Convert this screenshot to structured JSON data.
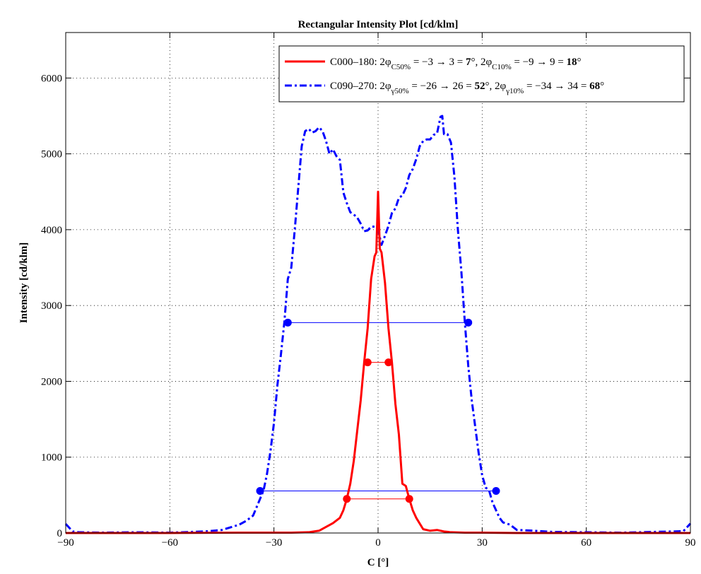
{
  "chart_data": {
    "type": "line",
    "title": "Rectangular Intensity Plot [cd/klm]",
    "xlabel": "C [°]",
    "ylabel": "Intensity [cd/klm]",
    "xlim": [
      -90,
      90
    ],
    "ylim": [
      0,
      6600
    ],
    "xticks": [
      -90,
      -60,
      -30,
      0,
      30,
      60,
      90
    ],
    "yticks": [
      0,
      1000,
      2000,
      3000,
      4000,
      5000,
      6000
    ],
    "xtick_labels": [
      "−90",
      "−60",
      "−30",
      "0",
      "30",
      "60",
      "90"
    ],
    "ytick_labels": [
      "0",
      "1000",
      "2000",
      "3000",
      "4000",
      "5000",
      "6000"
    ],
    "grid": true,
    "legend_position": "top-right",
    "series": [
      {
        "name": "C000–180",
        "color": "#ff0000",
        "style": "solid",
        "x": [
          -90,
          -60,
          -40,
          -30,
          -25,
          -20,
          -17,
          -15,
          -13,
          -11,
          -10,
          -9,
          -8,
          -7,
          -6,
          -5,
          -4,
          -3,
          -2,
          -1,
          -0.5,
          0,
          0.5,
          1,
          2,
          3,
          4,
          5,
          6,
          7,
          8,
          9,
          10,
          11,
          13,
          15,
          17,
          19,
          21,
          25,
          30,
          40,
          60,
          90
        ],
        "y": [
          0,
          0,
          5,
          5,
          5,
          10,
          30,
          80,
          130,
          200,
          300,
          450,
          650,
          950,
          1350,
          1750,
          2250,
          2700,
          3350,
          3650,
          3700,
          4500,
          3750,
          3700,
          3300,
          2700,
          2250,
          1700,
          1300,
          650,
          620,
          450,
          300,
          200,
          50,
          30,
          40,
          20,
          10,
          5,
          5,
          0,
          0,
          0
        ]
      },
      {
        "name": "C090–270",
        "color": "#0000ff",
        "style": "dashdot",
        "x": [
          -90,
          -88,
          -86,
          -80,
          -70,
          -60,
          -50,
          -45,
          -40,
          -38,
          -36,
          -34,
          -33,
          -32,
          -31,
          -30,
          -29,
          -28,
          -27,
          -26,
          -25,
          -24,
          -23,
          -22,
          -21,
          -20,
          -19,
          -18,
          -17,
          -16,
          -15,
          -14,
          -13,
          -12,
          -11,
          -10,
          -9,
          -8,
          -7,
          -6,
          -5,
          -4,
          -3,
          -2,
          -1,
          0,
          1,
          2,
          3,
          4,
          5,
          6,
          7,
          8,
          9,
          10,
          11,
          12,
          13,
          14,
          15,
          16,
          17,
          18,
          18.5,
          19,
          20,
          21,
          22,
          23,
          24,
          25,
          26,
          27,
          28,
          29,
          30,
          31,
          32,
          33,
          34,
          35,
          36,
          38,
          40,
          45,
          50,
          60,
          70,
          80,
          85,
          88,
          90
        ],
        "y": [
          120,
          20,
          10,
          5,
          10,
          5,
          20,
          40,
          110,
          160,
          230,
          450,
          560,
          780,
          1080,
          1450,
          1950,
          2350,
          2780,
          3350,
          3500,
          4000,
          4550,
          5100,
          5300,
          5330,
          5280,
          5300,
          5350,
          5300,
          5170,
          5000,
          5060,
          4970,
          4920,
          4490,
          4350,
          4230,
          4200,
          4160,
          4080,
          3980,
          3990,
          4040,
          4040,
          4000,
          3800,
          3920,
          4050,
          4220,
          4280,
          4420,
          4450,
          4550,
          4720,
          4800,
          4930,
          5100,
          5170,
          5190,
          5190,
          5250,
          5270,
          5490,
          5500,
          5260,
          5260,
          5150,
          4700,
          4000,
          3450,
          2780,
          2200,
          1750,
          1400,
          1050,
          760,
          600,
          560,
          400,
          300,
          200,
          140,
          110,
          40,
          30,
          15,
          10,
          5,
          15,
          20,
          25,
          125
        ]
      }
    ],
    "annotations": [
      {
        "series": "C000–180",
        "level": 2250,
        "x_left": -3,
        "x_right": 3,
        "color": "#ff0000"
      },
      {
        "series": "C000–180",
        "level": 450,
        "x_left": -9,
        "x_right": 9,
        "color": "#ff0000"
      },
      {
        "series": "C090–270",
        "level": 2775,
        "x_left": -26,
        "x_right": 26,
        "color": "#0000ff"
      },
      {
        "series": "C090–270",
        "level": 555,
        "x_left": -34,
        "x_right": 34,
        "color": "#0000ff"
      }
    ]
  },
  "legend": {
    "entry1": {
      "name": "C000–180",
      "p1": ": 2φ",
      "s1": "C50%",
      "p2": " = −3 → 3 = ",
      "b1": "7",
      "p3": "°, 2φ",
      "s2": "C10%",
      "p4": " = −9 → 9 = ",
      "b2": "18",
      "p5": "°"
    },
    "entry2": {
      "name": "C090–270",
      "p1": ": 2φ",
      "s1": "γ50%",
      "p2": " = −26 → 26 = ",
      "b1": "52",
      "p3": "°, 2φ",
      "s2": "γ10%",
      "p4": " = −34 → 34 = ",
      "b2": "68",
      "p5": "°"
    }
  }
}
